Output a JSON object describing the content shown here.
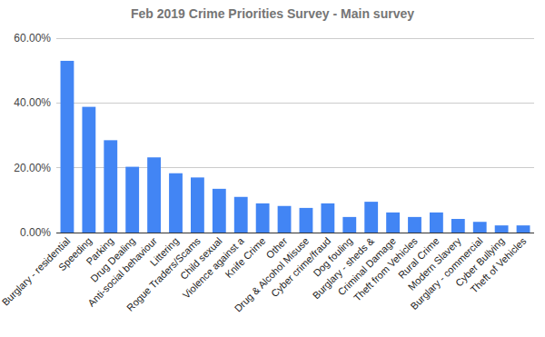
{
  "chart_data": {
    "type": "bar",
    "title": "Feb 2019 Crime Priorities Survey - Main survey",
    "categories": [
      "Burglary - residential",
      "Speeding",
      "Parking",
      "Drug Dealing",
      "Anti-social behaviour",
      "Littering",
      "Rogue Traders/Scams",
      "Child sexual",
      "Violence against a",
      "Knife Crime",
      "Other",
      "Drug & Alcohol Misuse",
      "Cyber crime/fraud",
      "Dog fouling",
      "Burglary - sheds &",
      "Criminal Damage",
      "Theft from Vehicles",
      "Rural Crime",
      "Modern Slavery",
      "Burglary - commercial",
      "Cyber Bullying",
      "Theft of Vehicles"
    ],
    "values": [
      53,
      38.8,
      28.5,
      20.3,
      23.2,
      18.3,
      17,
      13.5,
      11,
      9,
      8.2,
      7.6,
      9,
      4.8,
      9.5,
      6.2,
      4.8,
      6.2,
      4.2,
      3.3,
      2.2,
      2.2
    ],
    "color": "#4285f4",
    "ylim": [
      0,
      60
    ],
    "yticks": [
      {
        "value": 0,
        "label": "0.00%"
      },
      {
        "value": 20,
        "label": "20.00%"
      },
      {
        "value": 40,
        "label": "40.00%"
      },
      {
        "value": 60,
        "label": "60.00%"
      }
    ],
    "grid": true
  }
}
